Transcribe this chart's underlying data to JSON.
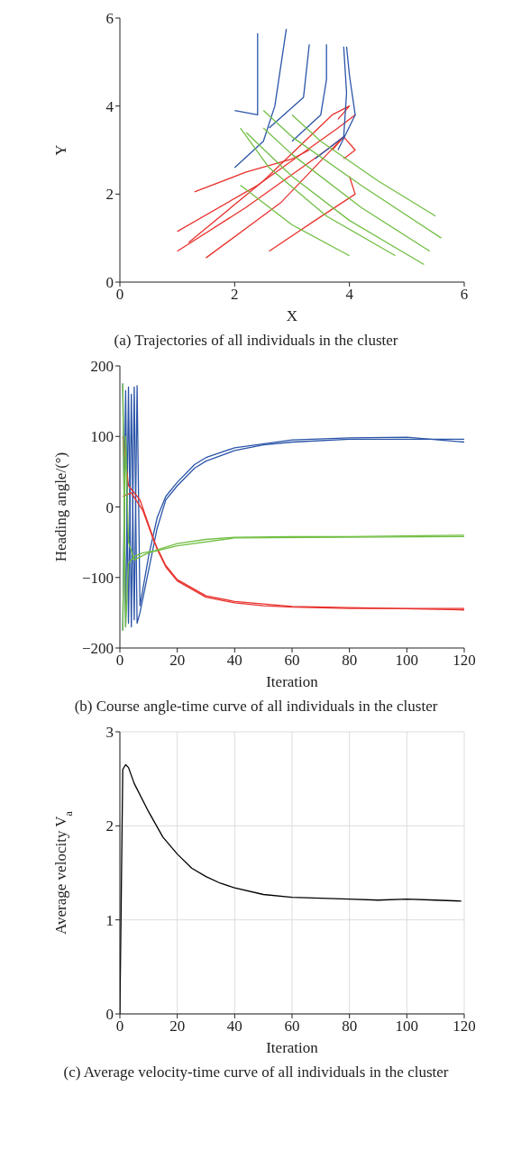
{
  "chart_data": [
    {
      "type": "line",
      "xlabel": "X",
      "ylabel": "Y",
      "xlim": [
        0,
        6
      ],
      "ylim": [
        0,
        6
      ],
      "xticks": [
        0,
        2,
        4,
        6
      ],
      "yticks": [
        0,
        2,
        4,
        6
      ],
      "annotations": [
        "(a) Trajectories of all individuals in the cluster"
      ],
      "series": [
        {
          "color": "#e8322d",
          "x": [
            1.0,
            2.2,
            3.6,
            3.9,
            3.7
          ],
          "values": [
            0.7,
            1.7,
            3.0,
            3.3,
            3.0
          ]
        },
        {
          "color": "#e8322d",
          "x": [
            1.0,
            2.4,
            3.8,
            4.1,
            3.9
          ],
          "values": [
            1.15,
            2.2,
            3.5,
            3.8,
            3.6
          ]
        },
        {
          "color": "#e8322d",
          "x": [
            1.3,
            2.2,
            3.0,
            3.3
          ],
          "values": [
            2.05,
            2.5,
            2.8,
            3.0
          ]
        },
        {
          "color": "#e8322d",
          "x": [
            1.5,
            2.8,
            3.9,
            4.1,
            3.9
          ],
          "values": [
            0.55,
            1.8,
            3.3,
            3.0,
            2.8
          ]
        },
        {
          "color": "#e8322d",
          "x": [
            2.6,
            3.4,
            4.1,
            4.0
          ],
          "values": [
            0.7,
            1.4,
            2.0,
            2.4
          ]
        },
        {
          "color": "#e8322d",
          "x": [
            1.2,
            2.5,
            3.7,
            4.0,
            3.8
          ],
          "values": [
            0.9,
            2.3,
            3.8,
            4.0,
            3.7
          ]
        },
        {
          "color": "#2b55a8",
          "x": [
            2.0,
            2.5,
            2.7,
            2.9
          ],
          "values": [
            2.6,
            3.2,
            4.0,
            5.75
          ]
        },
        {
          "color": "#2b55a8",
          "x": [
            2.0,
            2.4,
            2.4,
            2.4
          ],
          "values": [
            3.9,
            3.8,
            4.5,
            5.65
          ]
        },
        {
          "color": "#2b55a8",
          "x": [
            3.0,
            3.5,
            3.6,
            3.6
          ],
          "values": [
            3.2,
            3.8,
            4.6,
            5.4
          ]
        },
        {
          "color": "#2b55a8",
          "x": [
            3.4,
            3.9,
            3.95,
            3.9
          ],
          "values": [
            2.8,
            3.3,
            4.3,
            5.35
          ]
        },
        {
          "color": "#2b55a8",
          "x": [
            2.6,
            3.2,
            3.3
          ],
          "values": [
            3.5,
            4.2,
            5.4
          ]
        },
        {
          "color": "#2b55a8",
          "x": [
            3.8,
            4.1,
            4.0,
            3.95
          ],
          "values": [
            3.0,
            3.8,
            4.7,
            5.35
          ]
        },
        {
          "color": "#72bf44",
          "x": [
            5.3,
            4.0,
            3.0,
            2.2
          ],
          "values": [
            0.4,
            1.4,
            2.4,
            3.4
          ]
        },
        {
          "color": "#72bf44",
          "x": [
            5.6,
            4.2,
            3.0,
            2.5
          ],
          "values": [
            1.0,
            2.2,
            3.3,
            3.9
          ]
        },
        {
          "color": "#72bf44",
          "x": [
            4.0,
            3.0,
            2.3,
            2.1
          ],
          "values": [
            0.6,
            1.3,
            2.0,
            2.2
          ]
        },
        {
          "color": "#72bf44",
          "x": [
            5.5,
            4.5,
            3.5,
            3.0
          ],
          "values": [
            1.5,
            2.3,
            3.2,
            3.8
          ]
        },
        {
          "color": "#72bf44",
          "x": [
            4.8,
            3.6,
            2.6,
            2.1
          ],
          "values": [
            0.6,
            1.5,
            2.6,
            3.5
          ]
        },
        {
          "color": "#72bf44",
          "x": [
            5.4,
            4.2,
            3.0,
            2.5
          ],
          "values": [
            0.7,
            1.7,
            2.9,
            3.5
          ]
        }
      ]
    },
    {
      "type": "line",
      "xlabel": "Iteration",
      "ylabel": "Heading angle/(°)",
      "xlim": [
        0,
        120
      ],
      "ylim": [
        -200,
        200
      ],
      "xticks": [
        0,
        20,
        40,
        60,
        80,
        100,
        120
      ],
      "yticks": [
        -200,
        -100,
        0,
        100,
        200
      ],
      "annotations": [
        "(b) Course angle-time curve of all individuals in the cluster"
      ],
      "series": [
        {
          "color": "#2b55a8",
          "x": [
            1,
            2,
            3,
            4,
            5,
            6,
            7,
            10,
            13,
            16,
            20,
            26,
            30,
            40,
            50,
            60,
            80,
            100,
            120
          ],
          "values": [
            175,
            -170,
            170,
            -170,
            170,
            -165,
            -150,
            -90,
            -30,
            10,
            30,
            55,
            65,
            80,
            88,
            92,
            96,
            96,
            96
          ]
        },
        {
          "color": "#2b55a8",
          "x": [
            1,
            2,
            3,
            4,
            5,
            6,
            7,
            10,
            13,
            16,
            20,
            26,
            30,
            40,
            60,
            80,
            100,
            120
          ],
          "values": [
            -175,
            165,
            -165,
            160,
            -160,
            172,
            -140,
            -70,
            -15,
            15,
            35,
            60,
            70,
            84,
            95,
            98,
            99,
            92
          ]
        },
        {
          "color": "#e8322d",
          "x": [
            1,
            3,
            7,
            10,
            13,
            16,
            20,
            30,
            40,
            50,
            60,
            80,
            100,
            120
          ],
          "values": [
            100,
            30,
            10,
            -25,
            -60,
            -85,
            -105,
            -128,
            -136,
            -140,
            -142,
            -144,
            -144,
            -144
          ]
        },
        {
          "color": "#e8322d",
          "x": [
            1,
            4,
            8,
            12,
            16,
            20,
            30,
            40,
            60,
            120
          ],
          "values": [
            15,
            20,
            -5,
            -50,
            -83,
            -103,
            -126,
            -134,
            -141,
            -146
          ]
        },
        {
          "color": "#72bf44",
          "x": [
            1,
            2,
            3,
            5,
            8,
            12,
            20,
            30,
            40,
            60,
            80,
            120
          ],
          "values": [
            175,
            -170,
            -80,
            -70,
            -65,
            -62,
            -52,
            -46,
            -43,
            -42,
            -42,
            -40
          ]
        },
        {
          "color": "#72bf44",
          "x": [
            1,
            2,
            3,
            5,
            10,
            20,
            40,
            120
          ],
          "values": [
            -175,
            100,
            -50,
            -75,
            -65,
            -55,
            -44,
            -42
          ]
        }
      ]
    },
    {
      "type": "line",
      "xlabel": "Iteration",
      "ylabel": "Average velocity V$_{a}$",
      "xlim": [
        0,
        120
      ],
      "ylim": [
        0,
        3
      ],
      "xticks": [
        0,
        20,
        40,
        60,
        80,
        100,
        120
      ],
      "yticks": [
        0,
        1,
        2,
        3
      ],
      "grid": true,
      "annotations": [
        "(c) Average velocity-time curve of all individuals in the cluster"
      ],
      "series": [
        {
          "color": "#000000",
          "x": [
            0,
            1,
            2,
            3,
            5,
            10,
            15,
            20,
            25,
            30,
            35,
            40,
            50,
            60,
            70,
            80,
            90,
            100,
            110,
            119
          ],
          "values": [
            0,
            2.6,
            2.65,
            2.62,
            2.45,
            2.15,
            1.88,
            1.7,
            1.55,
            1.46,
            1.39,
            1.34,
            1.27,
            1.24,
            1.23,
            1.22,
            1.21,
            1.22,
            1.21,
            1.2
          ]
        }
      ]
    }
  ]
}
